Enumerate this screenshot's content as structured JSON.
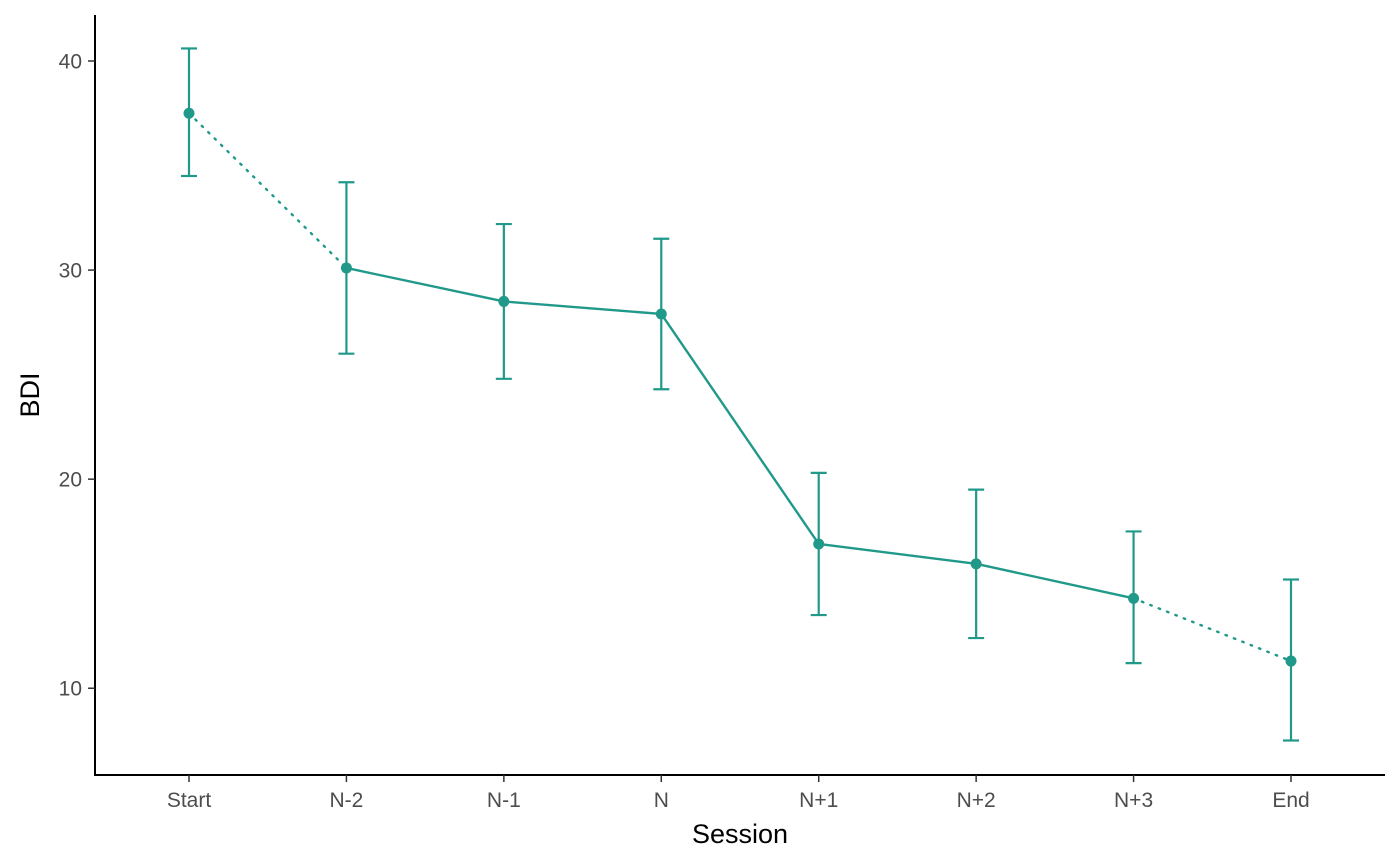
{
  "chart_data": {
    "type": "line",
    "title": "",
    "xlabel": "Session",
    "ylabel": "BDI",
    "categories": [
      "Start",
      "N-2",
      "N-1",
      "N",
      "N+1",
      "N+2",
      "N+3",
      "End"
    ],
    "series": [
      {
        "values": [
          37.5,
          30.1,
          28.5,
          27.9,
          16.9,
          15.95,
          14.3,
          11.3
        ],
        "error_lower": [
          34.5,
          26.0,
          24.8,
          24.3,
          13.5,
          12.4,
          11.2,
          7.5
        ],
        "error_upper": [
          40.6,
          34.2,
          32.2,
          31.5,
          20.3,
          19.5,
          17.5,
          15.2
        ],
        "color": "#21998A",
        "line_styles": [
          "dotted",
          "solid",
          "solid",
          "solid",
          "solid",
          "solid",
          "dotted"
        ]
      }
    ],
    "y_ticks": [
      10,
      20,
      30,
      40
    ],
    "ylim": [
      5.85,
      42.2
    ],
    "grid": false,
    "legend": "none"
  }
}
